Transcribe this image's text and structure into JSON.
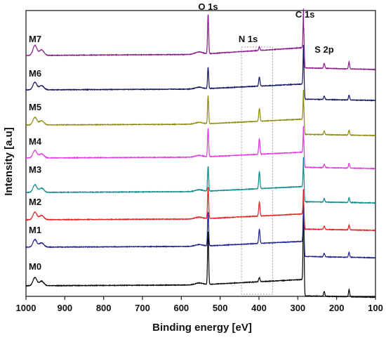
{
  "chart_data": {
    "type": "line",
    "title": "",
    "xlabel": "Binding energy [eV]",
    "ylabel": "Intensity [a.u]",
    "xlim": [
      1000,
      100
    ],
    "x_reversed": true,
    "x_ticks": [
      1000,
      900,
      800,
      700,
      600,
      500,
      400,
      300,
      200,
      100
    ],
    "y_ticks": "none",
    "grid": false,
    "legend": "none (series labelled at left of each curve)",
    "series": [
      {
        "name": "M0",
        "color": "#000000"
      },
      {
        "name": "M1",
        "color": "#1f1f8f"
      },
      {
        "name": "M2",
        "color": "#e02020"
      },
      {
        "name": "M3",
        "color": "#0a8a86"
      },
      {
        "name": "M4",
        "color": "#e335e3"
      },
      {
        "name": "M5",
        "color": "#8c8c10"
      },
      {
        "name": "M6",
        "color": "#151560"
      },
      {
        "name": "M7",
        "color": "#8a1a8a"
      }
    ],
    "peaks": [
      {
        "label": "O 1s",
        "x": 531
      },
      {
        "label": "N 1s",
        "x": 399
      },
      {
        "label": "C 1s",
        "x": 285
      },
      {
        "label": "S 2p",
        "x": 232
      }
    ],
    "highlight_region": {
      "x_from": 445,
      "x_to": 365,
      "style": "dotted box around N 1s"
    }
  }
}
